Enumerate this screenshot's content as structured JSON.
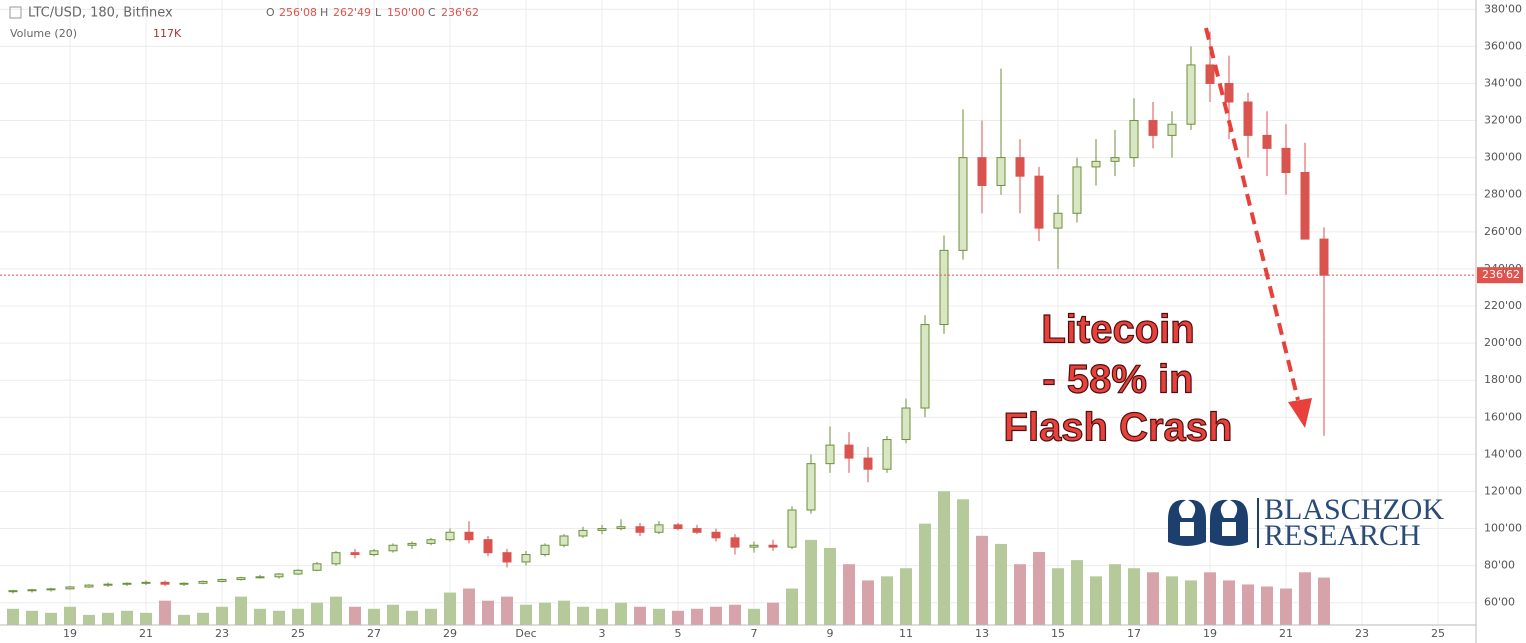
{
  "header": {
    "symbol": "LTC/USD, 180, Bitfinex",
    "open_label": "O",
    "open": "256'08",
    "high_label": "H",
    "high": "262'49",
    "low_label": "L",
    "low": "150'00",
    "close_label": "C",
    "close": "236'62",
    "volume_title": "Volume (20)",
    "volume": "117K"
  },
  "annotation": [
    "Litecoin",
    "- 58% in",
    "Flash Crash"
  ],
  "logo": {
    "line1": "BLASCHZOK",
    "line2": "RESEARCH"
  },
  "chart_data": {
    "type": "candlestick",
    "categories": [
      null,
      null,
      null,
      "19",
      null,
      null,
      null,
      "21",
      null,
      null,
      null,
      "23",
      null,
      null,
      null,
      "25",
      null,
      null,
      null,
      "27",
      null,
      null,
      null,
      "29",
      null,
      null,
      null,
      "Dec",
      null,
      null,
      null,
      "3",
      null,
      null,
      null,
      "5",
      null,
      null,
      null,
      "7",
      null,
      null,
      null,
      "9",
      null,
      null,
      null,
      "11",
      null,
      null,
      null,
      "13",
      null,
      null,
      null,
      "15",
      null,
      null,
      null,
      "17",
      null,
      null,
      null,
      "19",
      null,
      null,
      null,
      "21",
      null,
      null,
      null,
      "23",
      null,
      null,
      null,
      "25",
      null,
      null
    ],
    "open": [
      66,
      66.5,
      67,
      67.5,
      68.5,
      69.5,
      70,
      70.5,
      71,
      70,
      70.5,
      71.5,
      72.5,
      73.5,
      74,
      75.5,
      77.5,
      81,
      87,
      86,
      88,
      91,
      92,
      94,
      98,
      94,
      87,
      82,
      86,
      91,
      96,
      99,
      100,
      101,
      98,
      102,
      100,
      98,
      95,
      90,
      91,
      90,
      110,
      135,
      145,
      138,
      132,
      148,
      165,
      210,
      250,
      300,
      285,
      300,
      290,
      262,
      270,
      295,
      298,
      300,
      320,
      312,
      318,
      350,
      340,
      330,
      312,
      305,
      292,
      256.08,
      null,
      null,
      null,
      null,
      null,
      null,
      null,
      null
    ],
    "high": [
      67,
      67.5,
      68,
      69,
      70,
      71,
      71,
      72,
      72,
      71,
      72,
      73,
      74,
      75,
      76,
      78,
      82,
      88,
      89,
      89,
      92,
      93,
      95,
      100,
      104,
      96,
      89,
      88,
      92,
      97,
      101,
      102,
      105,
      103,
      104,
      103,
      102,
      100,
      97,
      93,
      94,
      112,
      140,
      155,
      152,
      144,
      150,
      170,
      215,
      258,
      326,
      320,
      348,
      310,
      295,
      280,
      300,
      310,
      315,
      332,
      330,
      325,
      360,
      368,
      355,
      335,
      325,
      318,
      308,
      262.49,
      null,
      null,
      null,
      null,
      null,
      null,
      null,
      null
    ],
    "low": [
      65,
      65.5,
      66,
      67,
      68,
      68.5,
      69,
      69.5,
      69,
      69,
      70,
      71,
      72,
      73,
      73,
      75,
      77,
      80,
      84,
      85,
      87,
      89,
      91,
      93,
      92,
      85,
      79,
      80,
      85,
      90,
      95,
      97,
      99,
      96,
      97,
      99,
      97,
      93,
      86,
      87,
      88,
      89,
      108,
      130,
      130,
      125,
      130,
      146,
      160,
      205,
      245,
      270,
      280,
      270,
      255,
      240,
      265,
      285,
      290,
      295,
      305,
      300,
      315,
      330,
      310,
      300,
      290,
      280,
      256,
      150,
      null,
      null,
      null,
      null,
      null,
      null,
      null,
      null
    ],
    "close": [
      66.5,
      67,
      67.5,
      68.5,
      69.5,
      70,
      70.5,
      71,
      70,
      70.5,
      71.5,
      72.5,
      73.5,
      74,
      75.5,
      77.5,
      81,
      87,
      86,
      88,
      91,
      92,
      94,
      98,
      94,
      87,
      82,
      86,
      91,
      96,
      99,
      100,
      101,
      98,
      102,
      100,
      98,
      95,
      90,
      91,
      90,
      110,
      135,
      145,
      138,
      132,
      148,
      165,
      210,
      250,
      300,
      285,
      300,
      290,
      262,
      270,
      295,
      298,
      300,
      320,
      312,
      318,
      350,
      340,
      330,
      312,
      305,
      292,
      256.08,
      236.62,
      null,
      null,
      null,
      null,
      null,
      null,
      null,
      null
    ],
    "up_color": "#6f8f3a",
    "down_color": "#d9534f",
    "ylim": [
      48,
      385
    ],
    "yticks": [
      {
        "value": 60,
        "label": "60'00"
      },
      {
        "value": 80,
        "label": "80'00"
      },
      {
        "value": 100,
        "label": "100'00"
      },
      {
        "value": 120,
        "label": "120'00"
      },
      {
        "value": 140,
        "label": "140'00"
      },
      {
        "value": 160,
        "label": "160'00"
      },
      {
        "value": 180,
        "label": "180'00"
      },
      {
        "value": 200,
        "label": "200'00"
      },
      {
        "value": 220,
        "label": "220'00"
      },
      {
        "value": 240,
        "label": "240'00"
      },
      {
        "value": 260,
        "label": "260'00"
      },
      {
        "value": 280,
        "label": "280'00"
      },
      {
        "value": 300,
        "label": "300'00"
      },
      {
        "value": 320,
        "label": "320'00"
      },
      {
        "value": 340,
        "label": "340'00"
      },
      {
        "value": 360,
        "label": "360'00"
      },
      {
        "value": 380,
        "label": "380'00"
      }
    ],
    "grid": true,
    "series": [
      {
        "name": "Volume (20)",
        "axis": "y2",
        "up_color": "#b5c99a",
        "down_color": "#d7a3aa",
        "values": [
          40,
          35,
          30,
          45,
          25,
          30,
          35,
          30,
          60,
          25,
          30,
          45,
          70,
          40,
          35,
          40,
          55,
          70,
          45,
          40,
          50,
          35,
          40,
          80,
          90,
          60,
          70,
          50,
          55,
          60,
          45,
          40,
          55,
          45,
          40,
          35,
          40,
          45,
          50,
          40,
          55,
          90,
          210,
          190,
          150,
          110,
          120,
          140,
          250,
          330,
          310,
          220,
          200,
          150,
          180,
          140,
          160,
          120,
          150,
          140,
          130,
          120,
          110,
          130,
          110,
          100,
          95,
          90,
          130,
          117,
          null,
          null,
          null,
          null,
          null,
          null,
          null,
          null
        ]
      }
    ],
    "y2lim": [
      0,
      370
    ]
  }
}
